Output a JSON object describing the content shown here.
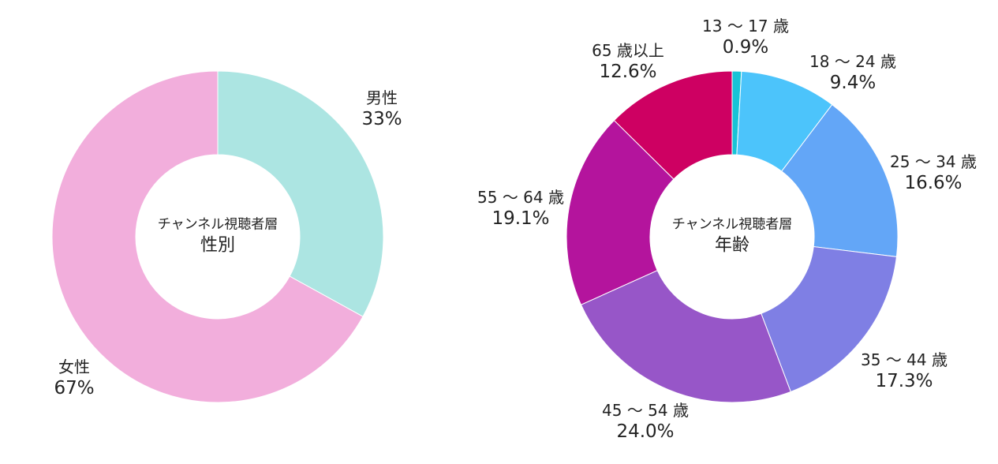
{
  "chart_data": [
    {
      "type": "pie",
      "center_title": "チャンネル視聴者層",
      "center_subtitle": "性別",
      "slices": [
        {
          "label": "男性",
          "value": 33,
          "value_label": "33%",
          "color": "#ace5e2"
        },
        {
          "label": "女性",
          "value": 67,
          "value_label": "67%",
          "color": "#f2aedc"
        }
      ]
    },
    {
      "type": "pie",
      "center_title": "チャンネル視聴者層",
      "center_subtitle": "年齢",
      "slices": [
        {
          "label": "13 〜 17 歳",
          "value": 0.9,
          "value_label": "0.9%",
          "color": "#18c3d6"
        },
        {
          "label": "18 〜 24 歳",
          "value": 9.4,
          "value_label": "9.4%",
          "color": "#4cc4fb"
        },
        {
          "label": "25 〜 34 歳",
          "value": 16.6,
          "value_label": "16.6%",
          "color": "#63a6f7"
        },
        {
          "label": "35 〜 44 歳",
          "value": 17.3,
          "value_label": "17.3%",
          "color": "#7f7fe4"
        },
        {
          "label": "45 〜 54 歳",
          "value": 24.0,
          "value_label": "24.0%",
          "color": "#9756c8"
        },
        {
          "label": "55 〜 64 歳",
          "value": 19.1,
          "value_label": "19.1%",
          "color": "#b4149d"
        },
        {
          "label": "65 歳以上",
          "value": 12.6,
          "value_label": "12.6%",
          "color": "#ce0062"
        }
      ]
    }
  ]
}
